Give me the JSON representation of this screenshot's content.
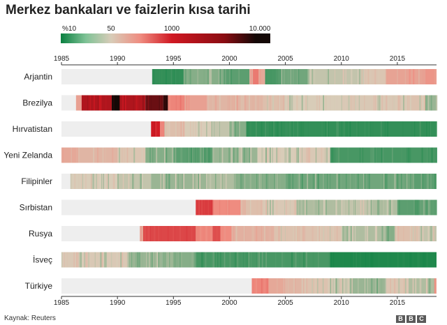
{
  "title": "Merkez bankaları ve faizlerin kısa tarihi",
  "source": "Kaynak: Reuters",
  "brand": [
    "B",
    "B",
    "C"
  ],
  "colors": {
    "track": "#eeeeee",
    "neutral": "#d8ccb8",
    "green_dark": "#0a8040",
    "green_light": "#a8d4ab",
    "red": "#e8645a",
    "red_dark": "#d01822",
    "black": "#140806"
  },
  "chart_data": {
    "type": "heatmap",
    "title": "Merkez bankaları ve faizlerin kısa tarihi",
    "color_scale": {
      "labels": [
        "%10",
        "50",
        "1000",
        "10.000"
      ],
      "stops": [
        {
          "value": 0,
          "color": "#0a8040"
        },
        {
          "value": 10,
          "color": "#d8ccb8"
        },
        {
          "value": 50,
          "color": "#ef8c80"
        },
        {
          "value": 1000,
          "color": "#d01822"
        },
        {
          "value": 10000,
          "color": "#140806"
        }
      ]
    },
    "x_ticks": [
      1985,
      1990,
      1995,
      2000,
      2005,
      2010,
      2015
    ],
    "xlim": [
      1985,
      2018.5
    ],
    "countries": [
      {
        "name": "Arjantin",
        "start": 1993.1,
        "segments": [
          [
            1993.1,
            1995.9,
            2
          ],
          [
            1995.9,
            1999.5,
            6
          ],
          [
            1999.5,
            2001.8,
            4
          ],
          [
            2001.8,
            2002.1,
            30
          ],
          [
            2002.1,
            2002.6,
            80
          ],
          [
            2002.6,
            2003.2,
            25
          ],
          [
            2003.2,
            2004.6,
            3
          ],
          [
            2004.6,
            2007.0,
            5
          ],
          [
            2007.0,
            2012.0,
            9
          ],
          [
            2012.0,
            2014.0,
            12
          ],
          [
            2014.0,
            2017.5,
            28
          ],
          [
            2017.5,
            2018.5,
            40
          ]
        ]
      },
      {
        "name": "Brezilya",
        "start": 1986.3,
        "segments": [
          [
            1986.3,
            1986.8,
            30
          ],
          [
            1986.8,
            1989.5,
            1500
          ],
          [
            1989.5,
            1990.2,
            12000
          ],
          [
            1990.2,
            1992.5,
            1500
          ],
          [
            1992.5,
            1994.1,
            3500
          ],
          [
            1994.1,
            1994.5,
            7000
          ],
          [
            1994.5,
            1996.0,
            60
          ],
          [
            1996.0,
            1998.0,
            30
          ],
          [
            1998.0,
            2003.0,
            18
          ],
          [
            2003.0,
            2005.0,
            14
          ],
          [
            2005.0,
            2010.0,
            10
          ],
          [
            2010.0,
            2016.0,
            11
          ],
          [
            2016.0,
            2017.5,
            13
          ],
          [
            2017.5,
            2018.5,
            7
          ]
        ]
      },
      {
        "name": "Hırvatistan",
        "start": 1993.0,
        "segments": [
          [
            1993.0,
            1993.8,
            900
          ],
          [
            1993.8,
            1994.2,
            60
          ],
          [
            1994.2,
            1996.0,
            14
          ],
          [
            1996.0,
            1998.5,
            10
          ],
          [
            1998.5,
            2000.0,
            9
          ],
          [
            2000.0,
            2001.5,
            6
          ],
          [
            2001.5,
            2018.5,
            2
          ]
        ]
      },
      {
        "name": "Yeni Zelanda",
        "start": 1985.0,
        "segments": [
          [
            1985.0,
            1986.5,
            25
          ],
          [
            1986.5,
            1990.0,
            18
          ],
          [
            1990.0,
            1992.5,
            12
          ],
          [
            1992.5,
            1995.0,
            6
          ],
          [
            1995.0,
            1998.5,
            4
          ],
          [
            1998.5,
            2002.5,
            7
          ],
          [
            2002.5,
            2006.5,
            10
          ],
          [
            2006.5,
            2009.0,
            11
          ],
          [
            2009.0,
            2018.5,
            3
          ]
        ]
      },
      {
        "name": "Filipinler",
        "start": 1985.8,
        "segments": [
          [
            1985.8,
            1990.0,
            10
          ],
          [
            1990.0,
            1993.0,
            9
          ],
          [
            1993.0,
            1998.0,
            7
          ],
          [
            1998.0,
            2000.5,
            8
          ],
          [
            2000.5,
            2005.0,
            6
          ],
          [
            2005.0,
            2008.0,
            5
          ],
          [
            2008.0,
            2016.5,
            5
          ],
          [
            2016.5,
            2018.5,
            4
          ]
        ]
      },
      {
        "name": "Sırbistan",
        "start": 1997.0,
        "segments": [
          [
            1997.0,
            1998.5,
            400
          ],
          [
            1998.5,
            2001.0,
            50
          ],
          [
            2001.0,
            2003.0,
            14
          ],
          [
            2003.0,
            2006.0,
            11
          ],
          [
            2006.0,
            2010.0,
            8
          ],
          [
            2010.0,
            2012.5,
            9
          ],
          [
            2012.5,
            2015.0,
            8
          ],
          [
            2015.0,
            2018.5,
            4
          ]
        ]
      },
      {
        "name": "Rusya",
        "start": 1992.0,
        "segments": [
          [
            1992.0,
            1992.3,
            30
          ],
          [
            1992.3,
            1997.0,
            300
          ],
          [
            1997.0,
            1998.5,
            60
          ],
          [
            1998.5,
            1999.2,
            250
          ],
          [
            1999.2,
            2000.2,
            50
          ],
          [
            2000.2,
            2004.0,
            20
          ],
          [
            2004.0,
            2008.0,
            13
          ],
          [
            2008.0,
            2010.0,
            13
          ],
          [
            2010.0,
            2014.0,
            8
          ],
          [
            2014.0,
            2014.8,
            6
          ],
          [
            2014.8,
            2017.0,
            14
          ],
          [
            2017.0,
            2018.5,
            9
          ]
        ]
      },
      {
        "name": "İsveç",
        "start": 1985.0,
        "segments": [
          [
            1985.0,
            1987.5,
            11
          ],
          [
            1987.5,
            1991.0,
            11
          ],
          [
            1991.0,
            1994.0,
            7
          ],
          [
            1994.0,
            1997.0,
            6
          ],
          [
            1997.0,
            2009.0,
            3
          ],
          [
            2009.0,
            2018.5,
            1
          ]
        ]
      },
      {
        "name": "Türkiye",
        "start": 2002.0,
        "segments": [
          [
            2002.0,
            2003.5,
            60
          ],
          [
            2003.5,
            2005.0,
            25
          ],
          [
            2005.0,
            2007.0,
            18
          ],
          [
            2007.0,
            2009.0,
            13
          ],
          [
            2009.0,
            2011.0,
            9
          ],
          [
            2011.0,
            2014.0,
            7
          ],
          [
            2014.0,
            2016.0,
            12
          ],
          [
            2016.0,
            2018.3,
            8
          ],
          [
            2018.3,
            2018.5,
            30
          ]
        ]
      }
    ]
  }
}
